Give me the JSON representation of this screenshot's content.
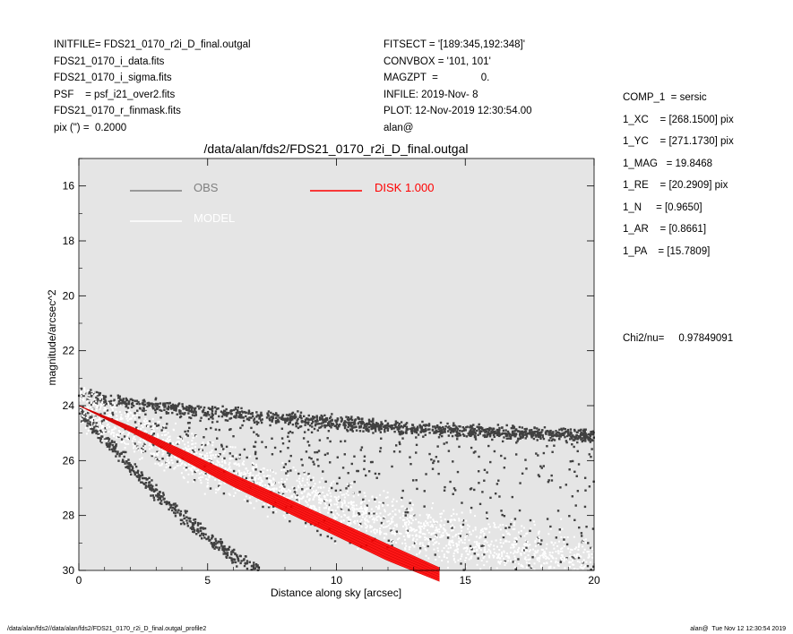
{
  "header_left": [
    "INITFILE= FDS21_0170_r2i_D_final.outgal",
    "FDS21_0170_i_data.fits",
    "FDS21_0170_i_sigma.fits",
    "PSF    = psf_i21_over2.fits",
    "FDS21_0170_r_finmask.fits",
    "pix (\") =  0.2000"
  ],
  "header_mid": [
    "FITSECT = '[189:345,192:348]'",
    "CONVBOX = '101, 101'",
    "MAGZPT  =               0.",
    "INFILE: 2019-Nov- 8",
    "PLOT: 12-Nov-2019 12:30:54.00",
    "alan@"
  ],
  "header_right": [
    "COMP_1  = sersic",
    "1_XC    = [268.1500] pix",
    "1_YC    = [271.1730] pix",
    "1_MAG   = 19.8468",
    "1_RE    = [20.2909] pix",
    "1_N     = [0.9650]",
    "1_AR    = [0.8661]",
    "1_PA    = [15.7809]"
  ],
  "chi2": "Chi2/nu=     0.97849091",
  "footer_left": "/data/alan/fds2//data/alan/fds2/FDS21_0170_r2i_D_final.outgal_profile2",
  "footer_right": "alan@  Tue Nov 12 12:30:54 2019",
  "colors": {
    "plot_bg": "#e5e5e5",
    "obs": "#404040",
    "model": "#ffffff",
    "disk": "#ff0000",
    "legend_obs": "#808080"
  },
  "chart_data": {
    "type": "scatter",
    "title": "/data/alan/fds2/FDS21_0170_r2i_D_final.outgal",
    "xlabel": "Distance along sky [arcsec]",
    "ylabel": "magnitude/arcsec^2",
    "xlim": [
      0,
      20
    ],
    "ylim": [
      30,
      15
    ],
    "y_inverted": true,
    "x_ticks": [
      0,
      5,
      10,
      15,
      20
    ],
    "y_ticks": [
      16,
      18,
      20,
      22,
      24,
      26,
      28,
      30
    ],
    "grid": false,
    "legend": [
      {
        "name": "OBS",
        "style": "gray line"
      },
      {
        "name": "MODEL",
        "style": "white line"
      },
      {
        "name": "DISK  1.000",
        "style": "red line"
      }
    ],
    "series": [
      {
        "name": "OBS",
        "kind": "points",
        "upper_band": [
          [
            0,
            23.6
          ],
          [
            2,
            23.9
          ],
          [
            5,
            24.2
          ],
          [
            8,
            24.5
          ],
          [
            11,
            24.7
          ],
          [
            14,
            24.9
          ],
          [
            17,
            25.0
          ],
          [
            20,
            25.1
          ]
        ],
        "lower_branch": [
          [
            0,
            24.2
          ],
          [
            1,
            25.2
          ],
          [
            2,
            26.2
          ],
          [
            3,
            27.2
          ],
          [
            4,
            28.0
          ],
          [
            5,
            28.8
          ],
          [
            6,
            29.5
          ],
          [
            7,
            30.0
          ]
        ],
        "max_scatter_depth": [
          [
            0,
            24.5
          ],
          [
            5,
            27.0
          ],
          [
            10,
            29.0
          ],
          [
            15,
            30.0
          ],
          [
            20,
            30.0
          ]
        ]
      },
      {
        "name": "MODEL",
        "kind": "points",
        "x": [
          0,
          5,
          10,
          15,
          20
        ],
        "y": [
          24.0,
          26.2,
          27.8,
          29.0,
          30.0
        ]
      },
      {
        "name": "DISK  1.000",
        "kind": "band",
        "x": [
          0,
          2,
          4,
          6,
          8,
          10,
          12,
          14
        ],
        "y_upper": [
          24.0,
          24.75,
          25.6,
          26.5,
          27.35,
          28.2,
          29.05,
          29.9
        ],
        "y_lower": [
          24.0,
          24.95,
          25.95,
          26.95,
          27.85,
          28.75,
          29.65,
          30.4
        ]
      }
    ]
  }
}
